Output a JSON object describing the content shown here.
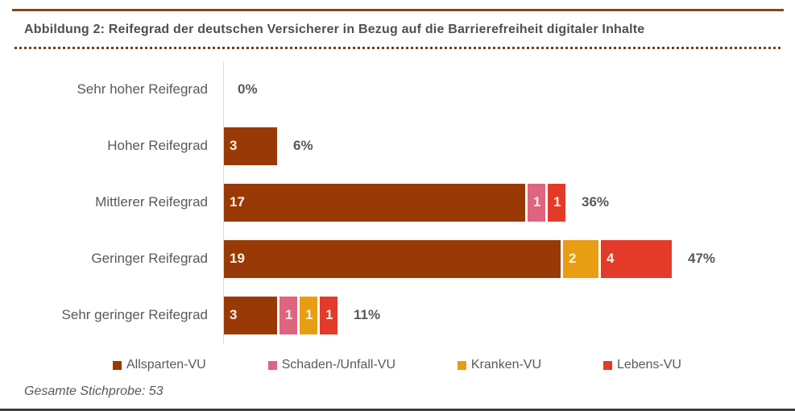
{
  "title": "Abbildung 2: Reifegrad der deutschen Versicherer in Bezug auf die Barrierefreiheit digitaler Inhalte",
  "footer_note": "Gesamte Stichprobe: 53",
  "colors": {
    "top_rule": "#8A4414",
    "dotted_rule": "#70401E",
    "axis_line": "#D9D9D9",
    "text_gray": "#595959",
    "title_gray": "#4F4F4F",
    "bar_value_text": "#FAF3E6",
    "bottom_rule": "#3F3F3F"
  },
  "chart_data": {
    "type": "bar",
    "orientation": "horizontal",
    "stacked": true,
    "title": "Abbildung 2: Reifegrad der deutschen Versicherer in Bezug auf die Barrierefreiheit digitaler Inhalte",
    "categories": [
      "Sehr hoher Reifegrad",
      "Hoher Reifegrad",
      "Mittlerer Reifegrad",
      "Geringer Reifegrad",
      "Sehr geringer Reifegrad"
    ],
    "series": [
      {
        "name": "Allsparten-VU",
        "key": "allsparten-vu",
        "color": "#993A06",
        "values": [
          0,
          3,
          17,
          19,
          3
        ]
      },
      {
        "name": "Schaden-/Unfall-VU",
        "key": "schaden-unfall-vu",
        "color": "#DF647F",
        "values": [
          0,
          0,
          1,
          0,
          1
        ]
      },
      {
        "name": "Kranken-VU",
        "key": "kranken-vu",
        "color": "#E99D13",
        "values": [
          0,
          0,
          0,
          2,
          1
        ]
      },
      {
        "name": "Lebens-VU",
        "key": "lebens-vu",
        "color": "#E43A29",
        "values": [
          0,
          0,
          1,
          4,
          1
        ]
      }
    ],
    "category_totals_pct": [
      "0%",
      "6%",
      "36%",
      "47%",
      "11%"
    ],
    "sample_size_total": 53,
    "legend_position": "bottom",
    "grid": false,
    "value_labels": "segment values shown inside bars; zero segments hidden"
  }
}
